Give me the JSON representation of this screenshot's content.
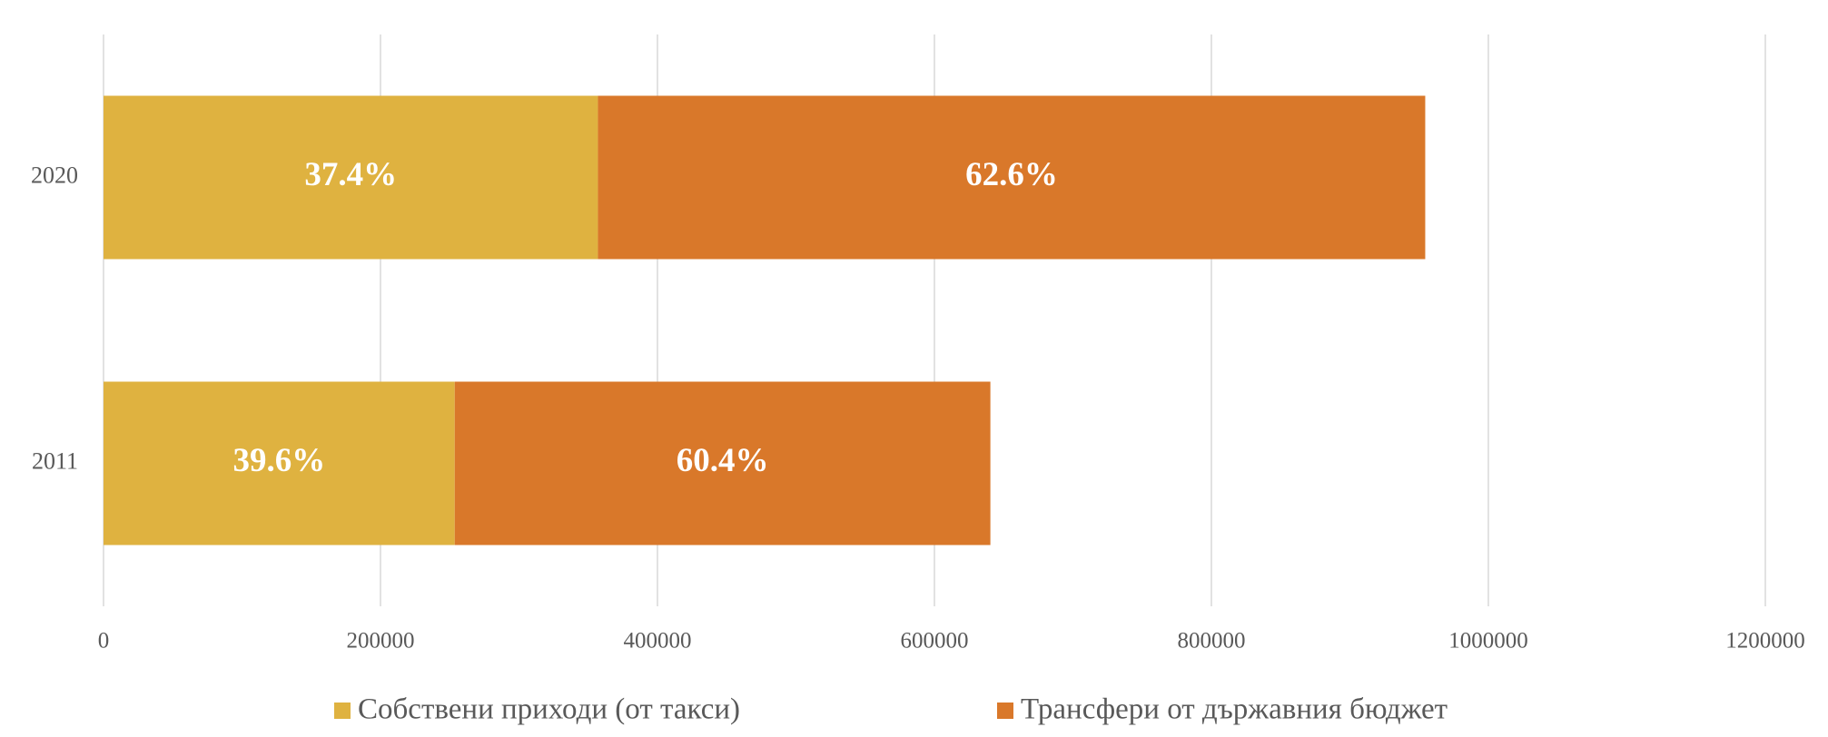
{
  "chart_data": {
    "type": "bar",
    "orientation": "horizontal",
    "stacked": true,
    "categories": [
      "2011",
      "2020"
    ],
    "series": [
      {
        "name": "Собствени приходи (от такси)",
        "color": "#dfb240",
        "values": [
          253600,
          357000
        ],
        "data_labels": [
          {
            "value": 39.6,
            "label": "39.6%"
          },
          {
            "value": 37.4,
            "label": "37.4%"
          }
        ]
      },
      {
        "name": "Трансфери от държавния бюджет",
        "color": "#d9782a",
        "values": [
          386800,
          597400
        ],
        "data_labels": [
          {
            "value": 60.4,
            "label": "60.4%"
          },
          {
            "value": 62.6,
            "label": "62.6%"
          }
        ]
      }
    ],
    "xlim": [
      0,
      1200000
    ],
    "xticks": [
      0,
      200000,
      400000,
      600000,
      800000,
      1000000,
      1200000
    ],
    "grid": true,
    "legend": "bottom"
  }
}
